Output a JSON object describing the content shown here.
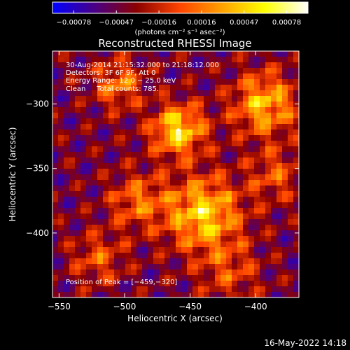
{
  "colors": {
    "background": "#000000",
    "text": "#ffffff"
  },
  "chart_data": {
    "type": "heatmap",
    "title": "Reconstructed RHESSI Image",
    "xlabel": "Heliocentric X (arcsec)",
    "ylabel": "Heliocentric Y (arcsec)",
    "xlim": [
      -555,
      -367
    ],
    "ylim": [
      -450,
      -259
    ],
    "xticks": [
      -550,
      -500,
      -450,
      -400
    ],
    "yticks": [
      -300,
      -350,
      -400
    ],
    "xtick_labels": [
      "−550",
      "−500",
      "−450",
      "−400"
    ],
    "ytick_labels": [
      "−300",
      "−350",
      "−400"
    ],
    "colorbar": {
      "min": -0.00078,
      "max": 0.00078,
      "tick_labels": [
        "−0.00078",
        "−0.00047",
        "−0.00016",
        "0.00016",
        "0.00047",
        "0.00078"
      ],
      "unit_label": "(photons cm⁻² s⁻¹ asec⁻²)",
      "colormap": [
        "#0000ff",
        "#4b0082",
        "#8b0000",
        "#ff4500",
        "#ffa500",
        "#ffff00",
        "#ffffff"
      ]
    },
    "annotations": [
      "30‑Aug‑2014 21:15:32.000 to 21:18:12.000",
      "Detectors: 3F 6F 9F, Att 0",
      "Energy Range: 12.0 − 25.0 keV",
      "Clean     Total counts: 785.",
      "Position of Peak = [−459,−320]"
    ],
    "peak": {
      "x": -459,
      "y": -320
    },
    "sources": [
      {
        "x": -459,
        "y": -320,
        "amp": 1.0,
        "sigma": 14
      },
      {
        "x": -440,
        "y": -385,
        "amp": 0.95,
        "sigma": 20
      },
      {
        "x": -393,
        "y": -300,
        "amp": 0.85,
        "sigma": 17
      },
      {
        "x": -505,
        "y": -285,
        "amp": 0.6,
        "sigma": 13
      },
      {
        "x": -490,
        "y": -375,
        "amp": 0.55,
        "sigma": 15
      },
      {
        "x": -520,
        "y": -420,
        "amp": 0.45,
        "sigma": 14
      },
      {
        "x": -420,
        "y": -430,
        "amp": 0.4,
        "sigma": 16
      },
      {
        "x": -385,
        "y": -355,
        "amp": 0.45,
        "sigma": 14
      }
    ]
  },
  "footer": {
    "timestamp": "16‑May‑2022 14:18"
  }
}
